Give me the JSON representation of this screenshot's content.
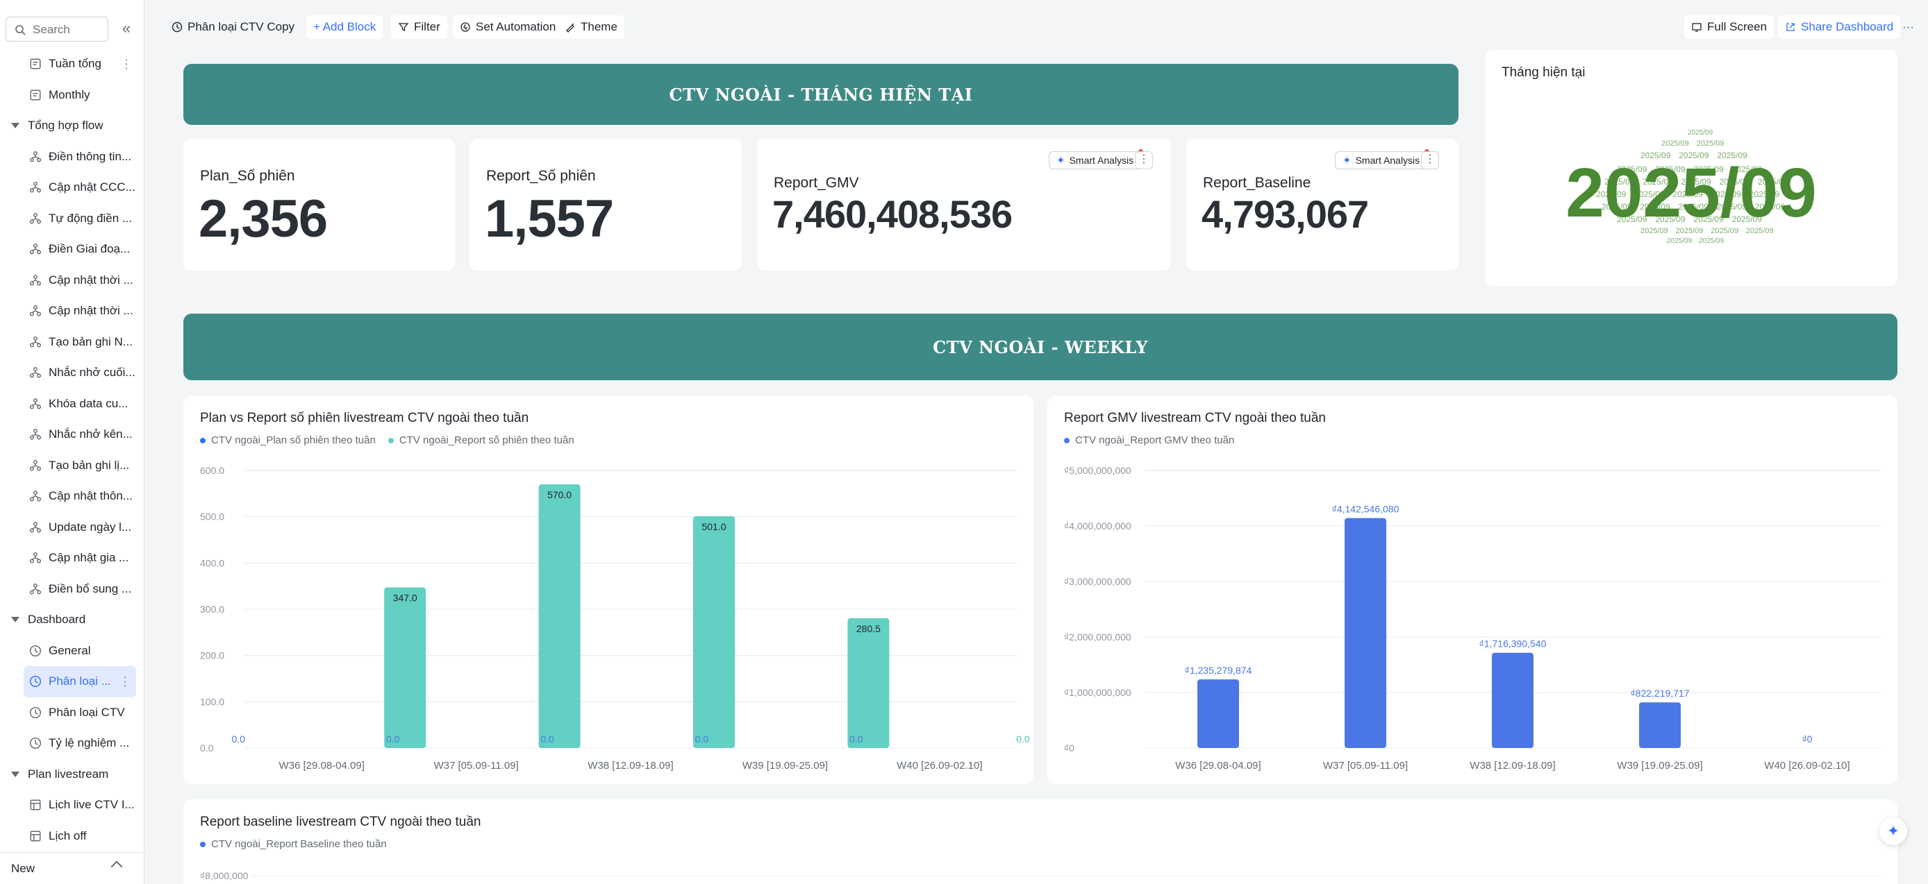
{
  "sidebar": {
    "search_placeholder": "Search",
    "collapse_icon": "«",
    "items": [
      {
        "type": "child",
        "label": "Tuần tổng",
        "icon": "report-icon",
        "more": true
      },
      {
        "type": "child",
        "label": "Monthly",
        "icon": "report-icon"
      },
      {
        "type": "group",
        "label": "Tổng hợp flow"
      },
      {
        "type": "child",
        "label": "Điền thông tin...",
        "icon": "workflow-icon"
      },
      {
        "type": "child",
        "label": "Cập nhật CCC...",
        "icon": "workflow-icon"
      },
      {
        "type": "child",
        "label": "Tự động điền ...",
        "icon": "workflow-icon"
      },
      {
        "type": "child",
        "label": "Điền Giai đoạ...",
        "icon": "workflow-icon"
      },
      {
        "type": "child",
        "label": "Cập nhật thời ...",
        "icon": "workflow-icon"
      },
      {
        "type": "child",
        "label": "Cập nhật thời ...",
        "icon": "workflow-icon"
      },
      {
        "type": "child",
        "label": "Tạo bản ghi N...",
        "icon": "workflow-icon"
      },
      {
        "type": "child",
        "label": "Nhắc nhở cuối...",
        "icon": "workflow-icon"
      },
      {
        "type": "child",
        "label": "Khóa data cu...",
        "icon": "workflow-icon"
      },
      {
        "type": "child",
        "label": "Nhắc nhở kên...",
        "icon": "workflow-icon"
      },
      {
        "type": "child",
        "label": "Tạo bản ghi lị...",
        "icon": "workflow-icon"
      },
      {
        "type": "child",
        "label": "Cập nhật thôn...",
        "icon": "workflow-icon"
      },
      {
        "type": "child",
        "label": "Update ngày l...",
        "icon": "workflow-icon"
      },
      {
        "type": "child",
        "label": "Cập nhật gia ...",
        "icon": "workflow-icon"
      },
      {
        "type": "child",
        "label": "Điền bổ sung ...",
        "icon": "workflow-icon"
      },
      {
        "type": "group",
        "label": "Dashboard"
      },
      {
        "type": "child",
        "label": "General",
        "icon": "dashboard-icon"
      },
      {
        "type": "child",
        "label": "Phân loại ...",
        "icon": "dashboard-icon",
        "active": true,
        "more": true
      },
      {
        "type": "child",
        "label": "Phân loại CTV",
        "icon": "dashboard-icon"
      },
      {
        "type": "child",
        "label": "Tỷ lệ nghiệm ...",
        "icon": "dashboard-icon"
      },
      {
        "type": "group",
        "label": "Plan livestream"
      },
      {
        "type": "child",
        "label": "Lịch live CTV I...",
        "icon": "table-icon"
      },
      {
        "type": "child",
        "label": "Lịch off",
        "icon": "table-icon"
      }
    ],
    "footer_label": "New"
  },
  "toolbar": {
    "dashboard_name": "Phân loại CTV Copy",
    "add_block": "+ Add Block",
    "filter": "Filter",
    "set_automation": "Set Automation",
    "theme": "Theme",
    "full_screen": "Full Screen",
    "share_dashboard": "Share Dashboard",
    "more": "···"
  },
  "banner_monthly": "CTV NGOÀI - THÁNG HIỆN TẠI",
  "banner_weekly": "CTV NGOÀI - WEEKLY",
  "kpis": {
    "plan": {
      "label": "Plan_Số phiên",
      "value": "2,356"
    },
    "report": {
      "label": "Report_Số phiên",
      "value": "1,557"
    },
    "gmv": {
      "label": "Report_GMV",
      "value": "7,460,408,536"
    },
    "baseline": {
      "label": "Report_Baseline",
      "value": "4,793,067"
    }
  },
  "smart_analysis": "Smart Analysis",
  "kebab": "⋮",
  "word_cloud": {
    "title": "Tháng hiện tại",
    "word": "2025/09",
    "color": "#4a8a32"
  },
  "float_button_icon": "✦",
  "colors": {
    "banner": "#3e8a86",
    "plan_series": "#3370ff",
    "report_series": "#62d0c3",
    "gmv_series": "#4a77e5",
    "accent": "#3370ff"
  },
  "chart_data": [
    {
      "type": "bar",
      "title": "Plan vs Report số phiên livestream CTV ngoài theo tuần",
      "categories": [
        "W36 [29.08-04.09]",
        "W37 [05.09-11.09]",
        "W38 [12.09-18.09]",
        "W39 [19.09-25.09]",
        "W40 [26.09-02.10]"
      ],
      "series": [
        {
          "name": "CTV ngoài_Plan số phiên theo tuần",
          "values": [
            0,
            0,
            0,
            0,
            0
          ],
          "labels": [
            "0.0",
            "0.0",
            "0.0",
            "0.0",
            "0.0"
          ]
        },
        {
          "name": "CTV ngoài_Report số phiên theo tuần",
          "values": [
            347,
            570,
            501,
            280.5,
            0
          ],
          "labels": [
            "347.0",
            "570.0",
            "501.0",
            "280.5",
            "0.0"
          ]
        }
      ],
      "yticks": [
        "0.0",
        "100.0",
        "200.0",
        "300.0",
        "400.0",
        "500.0",
        "600.0"
      ],
      "ylim": [
        0,
        600
      ],
      "grid": true,
      "legend": "top-left"
    },
    {
      "type": "bar",
      "title": "Report GMV livestream CTV ngoài theo tuần",
      "categories": [
        "W36 [29.08-04.09]",
        "W37 [05.09-11.09]",
        "W38 [12.09-18.09]",
        "W39 [19.09-25.09]",
        "W40 [26.09-02.10]"
      ],
      "series": [
        {
          "name": "CTV ngoài_Report GMV theo tuần",
          "values": [
            1235279874,
            4142546080,
            1716390540,
            822219717,
            0
          ],
          "labels": [
            "₫1,235,279,874",
            "₫4,142,546,080",
            "₫1,716,390,540",
            "₫822,219,717",
            "₫0"
          ]
        }
      ],
      "yticks": [
        "₫0",
        "₫1,000,000,000",
        "₫2,000,000,000",
        "₫3,000,000,000",
        "₫4,000,000,000",
        "₫5,000,000,000"
      ],
      "ylim": [
        0,
        5000000000
      ],
      "grid": true,
      "legend": "top-left"
    },
    {
      "type": "bar",
      "title": "Report baseline livestream CTV ngoài theo tuần",
      "series": [
        {
          "name": "CTV ngoài_Report Baseline theo tuần",
          "values": []
        }
      ],
      "yticks": [
        "₫8,000,000"
      ],
      "grid": true,
      "legend": "top-left"
    }
  ]
}
